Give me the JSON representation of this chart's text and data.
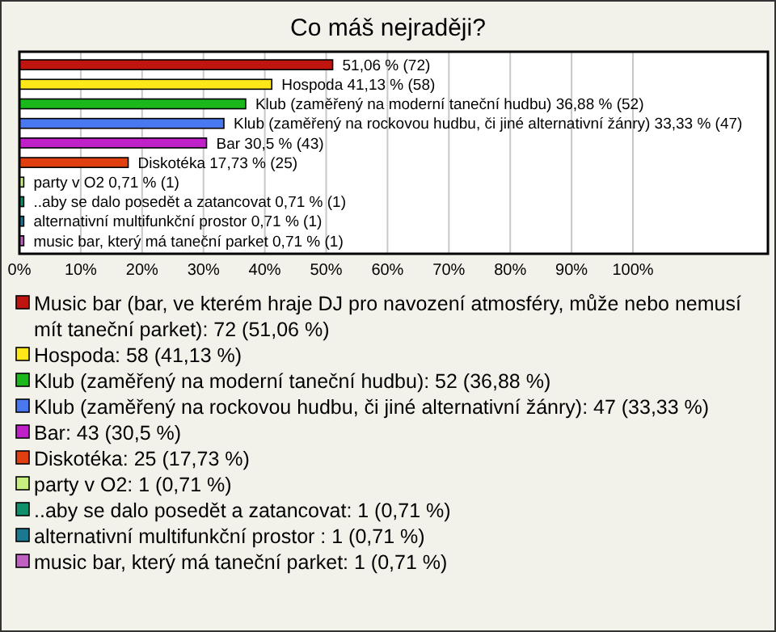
{
  "chart_data": {
    "type": "bar",
    "orientation": "horizontal",
    "title": "Co máš nejraději?",
    "categories": [
      null,
      "Hospoda",
      "Klub (zaměřený na moderní taneční hudbu)",
      "Klub (zaměřený na rockovou hudbu, či jiné alternativní žánry)",
      "Bar",
      "Diskotéka",
      "party v O2",
      "..aby se dalo posedět a zatancovat",
      "alternativní multifunkční prostor ",
      "music bar, který má taneční parket"
    ],
    "values": [
      51.06,
      41.13,
      36.88,
      33.33,
      30.5,
      17.73,
      0.71,
      0.71,
      0.71,
      0.71
    ],
    "value_labels": [
      "51,06 % (72)",
      "41,13 % (58)",
      "36,88 % (52)",
      "33,33 % (47)",
      "30,5 % (43)",
      "17,73 % (25)",
      "0,71 % (1)",
      "0,71 % (1)",
      "0,71 % (1)",
      "0,71 % (1)"
    ],
    "colors": [
      "#c0140e",
      "#ffe81a",
      "#1ab81a",
      "#4a78f0",
      "#c020c8",
      "#e04010",
      "#c8f080",
      "#10906a",
      "#1a7890",
      "#c060c0"
    ],
    "xlim": [
      0,
      122
    ],
    "xticks": [
      {
        "value": 0,
        "label": "0%"
      },
      {
        "value": 10,
        "label": "10%"
      },
      {
        "value": 20,
        "label": "20%"
      },
      {
        "value": 30,
        "label": "30%"
      },
      {
        "value": 40,
        "label": "40%"
      },
      {
        "value": 50,
        "label": "50%"
      },
      {
        "value": 60,
        "label": "60%"
      },
      {
        "value": 70,
        "label": "70%"
      },
      {
        "value": 80,
        "label": "80%"
      },
      {
        "value": 90,
        "label": "90%"
      },
      {
        "value": 100,
        "label": "100%"
      }
    ],
    "grid": "x",
    "tick_labels": "x",
    "annotations": [
      "Music bar (bar, ve kterém hraje DJ pro navození atmosféry, může nebo nemusí mít taneční parket): 72 (51,06 %)",
      "Hospoda: 58 (41,13 %)",
      "Klub (zaměřený na moderní taneční hudbu): 52 (36,88 %)",
      "Klub (zaměřený na rockovou hudbu, či jiné alternativní žánry): 47 (33,33 %)",
      "Bar: 43 (30,5 %)",
      "Diskotéka: 25 (17,73 %)",
      "party v O2: 1 (0,71 %)",
      "..aby se dalo posedět a zatancovat: 1 (0,71 %)",
      "alternativní multifunkční prostor : 1 (0,71 %)",
      "music bar, který má taneční parket: 1 (0,71 %)"
    ]
  }
}
